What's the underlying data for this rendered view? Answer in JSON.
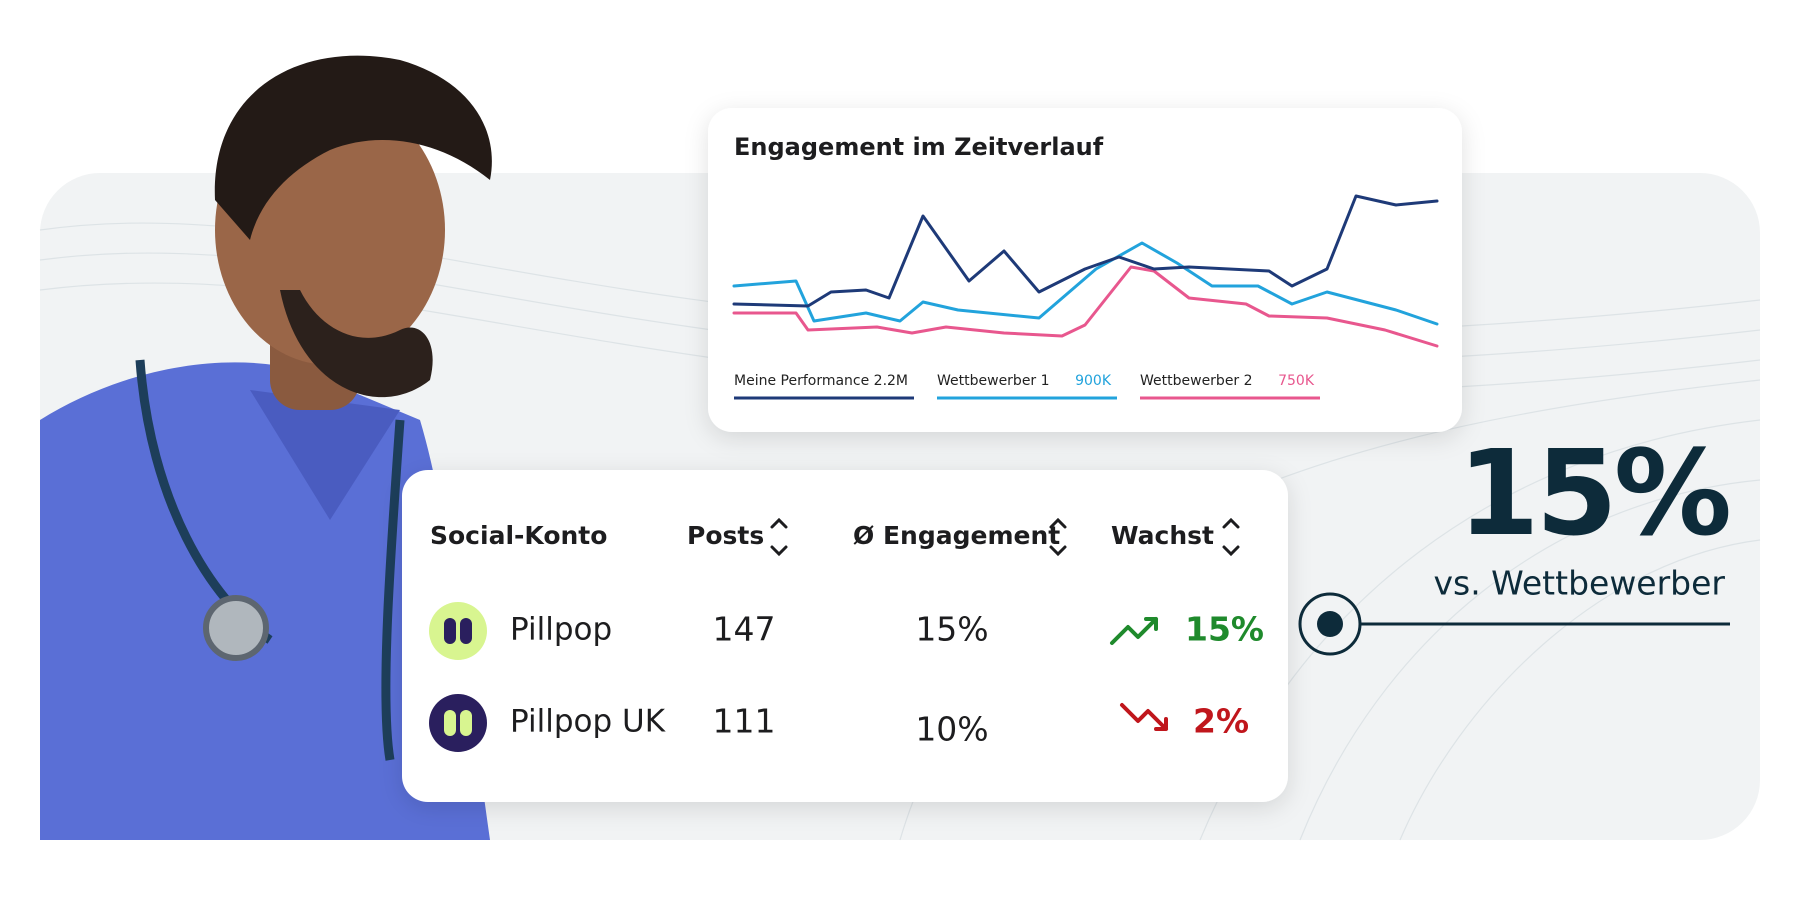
{
  "chart": {
    "title": "Engagement im Zeitverlauf",
    "legend": [
      {
        "name": "Meine Performance",
        "value": "2.2M",
        "color": "#1e3a78"
      },
      {
        "name": "Wettbewerber 1",
        "value": "900K",
        "color": "#22a3dc"
      },
      {
        "name": "Wettbewerber 2",
        "value": "750K",
        "color": "#e8578e"
      }
    ]
  },
  "table": {
    "headers": [
      "Social-Konto",
      "Posts",
      "Ø Engagement",
      "Wachst"
    ],
    "rows": [
      {
        "account": "Pillpop",
        "posts": "147",
        "engagement": "15%",
        "growth": "15%",
        "trend": "up",
        "icon": "light"
      },
      {
        "account": "Pillpop UK",
        "posts": "111",
        "engagement": "10%",
        "growth": "2%",
        "trend": "down",
        "icon": "dark"
      }
    ]
  },
  "highlight": {
    "value": "15%",
    "caption": "vs. Wettbewerber"
  }
}
